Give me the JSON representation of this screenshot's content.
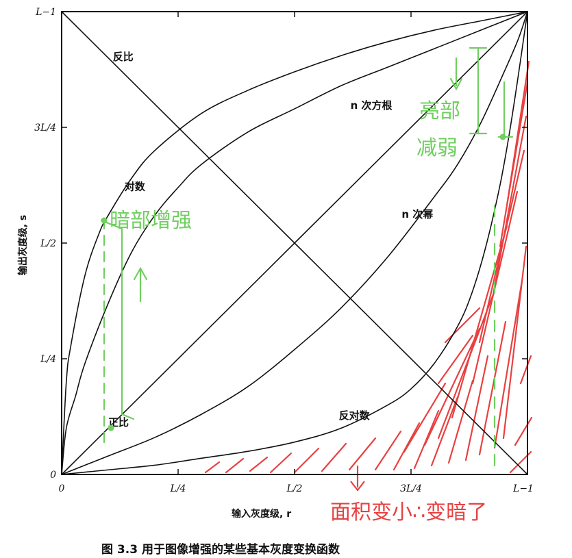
{
  "chart_data": {
    "type": "line",
    "xlabel": "输入灰度级, r",
    "ylabel": "输出灰度级, s",
    "xlim": [
      0,
      1
    ],
    "ylim": [
      0,
      1
    ],
    "x_tick_labels": [
      "0",
      "L/4",
      "L/2",
      "3L/4",
      "L−1"
    ],
    "y_tick_labels": [
      "0",
      "L/4",
      "L/2",
      "3L/4",
      "L−1"
    ],
    "ticks": [
      0,
      0.25,
      0.5,
      0.75,
      1
    ],
    "grid": false,
    "series": [
      {
        "name": "正比",
        "label_at": [
          0.1,
          0.105
        ],
        "points": [
          [
            0,
            0
          ],
          [
            1,
            1
          ]
        ]
      },
      {
        "name": "反比",
        "label_at": [
          0.11,
          0.895
        ],
        "points": [
          [
            0,
            1
          ],
          [
            1,
            0
          ]
        ]
      },
      {
        "name": "对数",
        "label_at": [
          0.135,
          0.615
        ],
        "points": [
          [
            0,
            0
          ],
          [
            0.01,
            0.2
          ],
          [
            0.02,
            0.28
          ],
          [
            0.05,
            0.43
          ],
          [
            0.08,
            0.52
          ],
          [
            0.1,
            0.56
          ],
          [
            0.15,
            0.64
          ],
          [
            0.2,
            0.7
          ],
          [
            0.3,
            0.78
          ],
          [
            0.4,
            0.83
          ],
          [
            0.5,
            0.87
          ],
          [
            0.6,
            0.905
          ],
          [
            0.7,
            0.935
          ],
          [
            0.8,
            0.96
          ],
          [
            0.9,
            0.98
          ],
          [
            1,
            1
          ]
        ]
      },
      {
        "name": "n 次方根",
        "label_at": [
          0.62,
          0.79
        ],
        "points": [
          [
            0,
            0
          ],
          [
            0.01,
            0.1
          ],
          [
            0.03,
            0.17
          ],
          [
            0.05,
            0.24
          ],
          [
            0.1,
            0.37
          ],
          [
            0.15,
            0.48
          ],
          [
            0.2,
            0.56
          ],
          [
            0.25,
            0.62
          ],
          [
            0.3,
            0.67
          ],
          [
            0.4,
            0.74
          ],
          [
            0.5,
            0.79
          ],
          [
            0.6,
            0.84
          ],
          [
            0.7,
            0.88
          ],
          [
            0.8,
            0.92
          ],
          [
            0.9,
            0.96
          ],
          [
            1,
            1
          ]
        ]
      },
      {
        "name": "n 次幂",
        "label_at": [
          0.73,
          0.555
        ],
        "points": [
          [
            0,
            0
          ],
          [
            0.1,
            0.04
          ],
          [
            0.2,
            0.08
          ],
          [
            0.3,
            0.13
          ],
          [
            0.4,
            0.19
          ],
          [
            0.5,
            0.27
          ],
          [
            0.6,
            0.36
          ],
          [
            0.7,
            0.47
          ],
          [
            0.8,
            0.6
          ],
          [
            0.85,
            0.67
          ],
          [
            0.9,
            0.76
          ],
          [
            0.95,
            0.87
          ],
          [
            0.98,
            0.94
          ],
          [
            1,
            1
          ]
        ]
      },
      {
        "name": "反对数",
        "label_at": [
          0.595,
          0.12
        ],
        "points": [
          [
            0,
            0
          ],
          [
            0.1,
            0.01
          ],
          [
            0.2,
            0.02
          ],
          [
            0.3,
            0.035
          ],
          [
            0.4,
            0.05
          ],
          [
            0.5,
            0.07
          ],
          [
            0.6,
            0.1
          ],
          [
            0.7,
            0.15
          ],
          [
            0.75,
            0.185
          ],
          [
            0.8,
            0.24
          ],
          [
            0.85,
            0.32
          ],
          [
            0.88,
            0.39
          ],
          [
            0.91,
            0.49
          ],
          [
            0.94,
            0.62
          ],
          [
            0.96,
            0.73
          ],
          [
            0.98,
            0.86
          ],
          [
            1,
            1
          ]
        ]
      }
    ],
    "caption": "图 3.3   用于图像增强的某些基本灰度变换函数"
  },
  "annotations": {
    "green_left": "暗部增强",
    "green_right_line1": "亮部",
    "green_right_line2": "减弱",
    "red_bottom": "面积变小∴变暗了"
  },
  "colors": {
    "axis": "#111111",
    "curve": "#111111",
    "green": "#6fcf5f",
    "red": "#e84040"
  }
}
